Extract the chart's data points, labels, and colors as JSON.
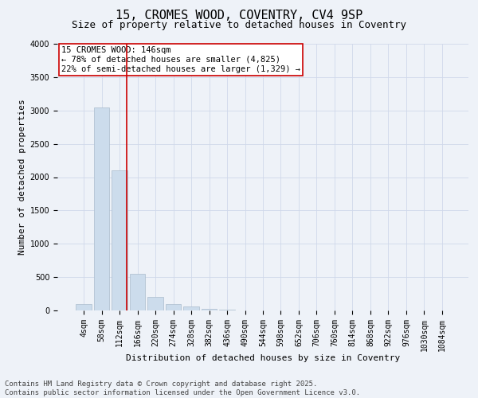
{
  "title": "15, CROMES WOOD, COVENTRY, CV4 9SP",
  "subtitle": "Size of property relative to detached houses in Coventry",
  "xlabel": "Distribution of detached houses by size in Coventry",
  "ylabel": "Number of detached properties",
  "bins": [
    "4sqm",
    "58sqm",
    "112sqm",
    "166sqm",
    "220sqm",
    "274sqm",
    "328sqm",
    "382sqm",
    "436sqm",
    "490sqm",
    "544sqm",
    "598sqm",
    "652sqm",
    "706sqm",
    "760sqm",
    "814sqm",
    "868sqm",
    "922sqm",
    "976sqm",
    "1030sqm",
    "1084sqm"
  ],
  "values": [
    100,
    3050,
    2100,
    550,
    200,
    100,
    55,
    28,
    12,
    5,
    0,
    0,
    0,
    0,
    0,
    0,
    0,
    0,
    0,
    0,
    0
  ],
  "bar_color": "#ccdcec",
  "bar_edgecolor": "#aabccc",
  "vline_color": "#cc0000",
  "vline_pos": 2.4,
  "annotation_box_text": "15 CROMES WOOD: 146sqm\n← 78% of detached houses are smaller (4,825)\n22% of semi-detached houses are larger (1,329) →",
  "ylim": [
    0,
    4000
  ],
  "yticks": [
    0,
    500,
    1000,
    1500,
    2000,
    2500,
    3000,
    3500,
    4000
  ],
  "grid_color": "#d0d8ea",
  "background_color": "#eef2f8",
  "footer": "Contains HM Land Registry data © Crown copyright and database right 2025.\nContains public sector information licensed under the Open Government Licence v3.0.",
  "title_fontsize": 11,
  "subtitle_fontsize": 9,
  "axis_label_fontsize": 8,
  "tick_fontsize": 7,
  "annotation_fontsize": 7.5,
  "footer_fontsize": 6.5
}
